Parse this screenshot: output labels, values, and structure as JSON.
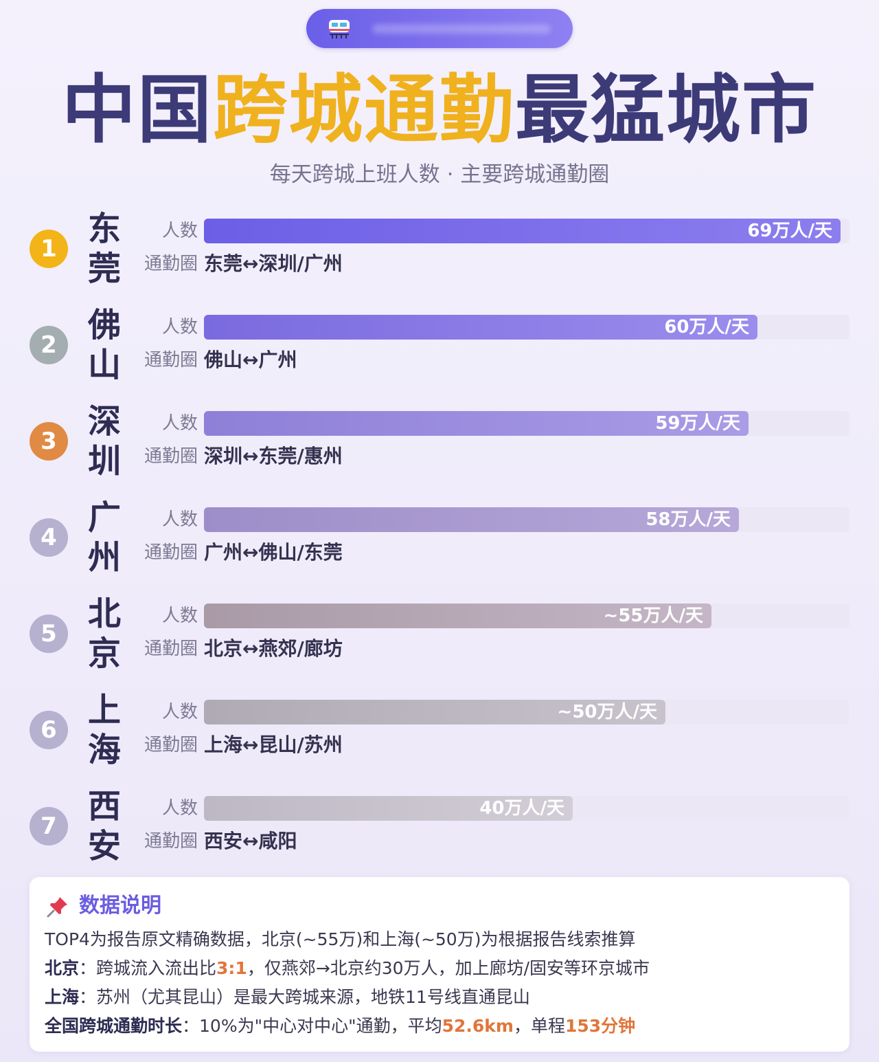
{
  "header": {
    "title_part1": "中国",
    "title_part2": "跨城通勤",
    "title_part3": "最猛城市",
    "subtitle": "每天跨城上班人数 · 主要跨城通勤圈",
    "pill_icon": "train-icon"
  },
  "labels": {
    "count": "人数",
    "circle": "通勤圈"
  },
  "chart_data": {
    "type": "bar",
    "orientation": "horizontal",
    "unit": "万人/天",
    "xlim": [
      0,
      70
    ],
    "categories": [
      "东莞",
      "佛山",
      "深圳",
      "广州",
      "北京",
      "上海",
      "西安"
    ],
    "values": [
      69,
      60,
      59,
      58,
      55,
      50,
      40
    ],
    "value_labels": [
      "69万人/天",
      "60万人/天",
      "59万人/天",
      "58万人/天",
      "~55万人/天",
      "~50万人/天",
      "40万人/天"
    ],
    "ranks": [
      "1",
      "2",
      "3",
      "4",
      "5",
      "6",
      "7"
    ],
    "commute_circles": [
      "东莞↔深圳/广州",
      "佛山↔广州",
      "深圳↔东莞/惠州",
      "广州↔佛山/东莞",
      "北京↔燕郊/廊坊",
      "上海↔昆山/苏州",
      "西安↔咸阳"
    ],
    "badge_colors": [
      "#f2b418",
      "#a4adb0",
      "#e08a44",
      "#b5b1cf",
      "#b5b1cf",
      "#b5b1cf",
      "#b5b1cf"
    ],
    "bar_colors": [
      [
        "#6c5fe6",
        "#8d7eee"
      ],
      [
        "#7a6adf",
        "#9b8ded"
      ],
      [
        "#8e7fd8",
        "#aa9ce6"
      ],
      [
        "#9d8dc9",
        "#b6a8d8"
      ],
      [
        "#a99aa6",
        "#c4b6c6"
      ],
      [
        "#b0aab4",
        "#c8c2cc"
      ],
      [
        "#bdb8c4",
        "#d2cdd6"
      ]
    ]
  },
  "notes": {
    "icon": "pushpin-icon",
    "heading": "数据说明",
    "line1": "TOP4为报告原文精确数据，北京(~55万)和上海(~50万)为根据报告线索推算",
    "line2_label": "北京",
    "line2_a": "：跨城流入流出比",
    "line2_hl": "3:1",
    "line2_b": "，仅燕郊→北京约30万人，加上廊坊/固安等环京城市",
    "line3_label": "上海",
    "line3_a": "：苏州（尤其昆山）是最大跨城来源，地铁11号线直通昆山",
    "line4_label": "全国跨城通勤时长",
    "line4_a": "：10%为\"中心对中心\"通勤，平均",
    "line4_hl1": "52.6km",
    "line4_b": "，单程",
    "line4_hl2": "153分钟"
  }
}
